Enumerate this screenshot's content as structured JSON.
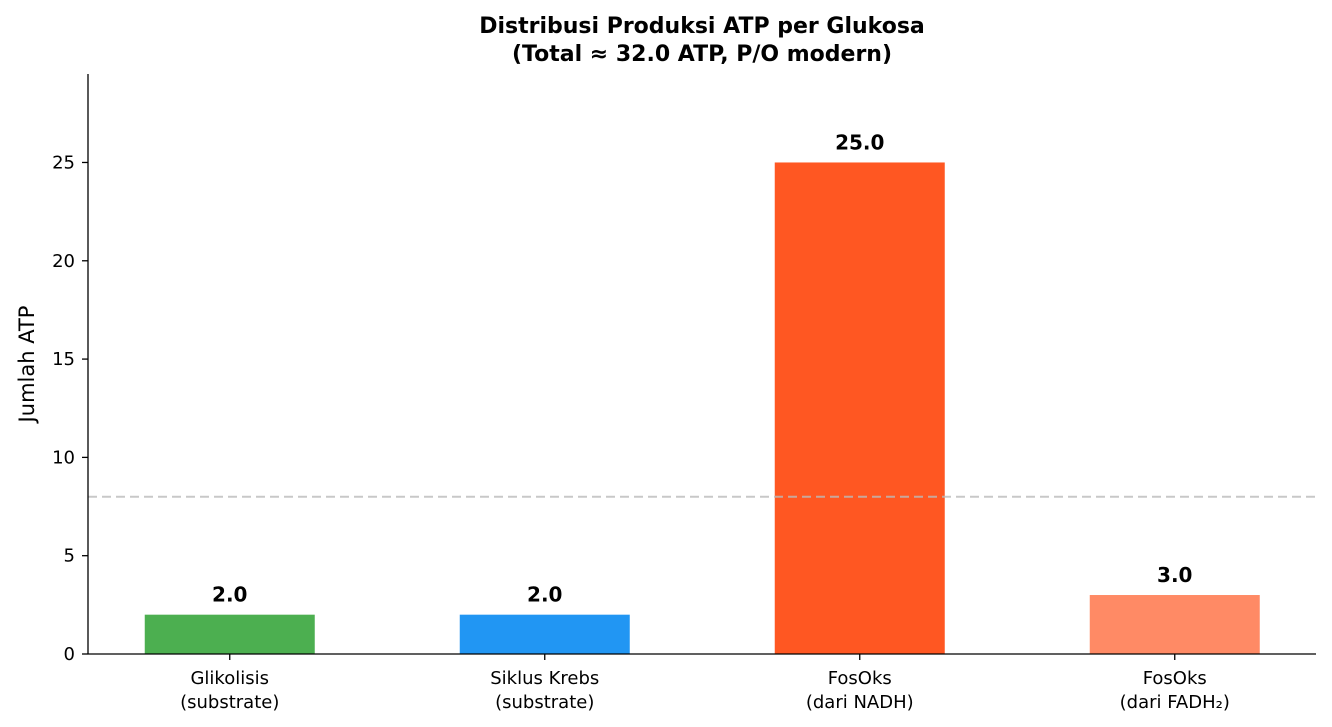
{
  "chart_data": {
    "type": "bar",
    "title": "Distribusi Produksi ATP per Glukosa",
    "subtitle": "(Total ≈ 32.0 ATP, P/O modern)",
    "y_label": "Jumlah ATP",
    "categories": [
      "Glikolisis\n(substrate)",
      "Siklus Krebs\n(substrate)",
      "FosOks\n(dari NADH)",
      "FosOks\n(dari FADH₂)"
    ],
    "values": [
      2,
      2,
      25,
      3
    ],
    "value_labels": [
      "2.0",
      "2.0",
      "25.0",
      "3.0"
    ],
    "colors": [
      "#4caf50",
      "#2196f3",
      "#ff5722",
      "#ff8a65"
    ],
    "reference_line": 8,
    "ylim": [
      0,
      29.5
    ],
    "yticks": [
      0,
      5,
      10,
      15,
      20,
      25
    ],
    "grid": false
  }
}
